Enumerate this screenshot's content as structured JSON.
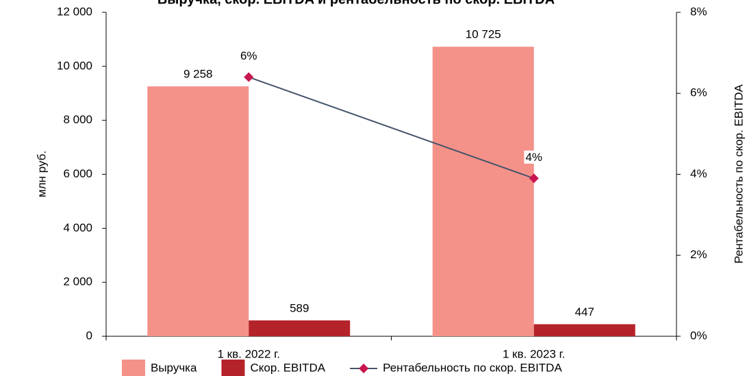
{
  "chart_data": {
    "type": "bar_line",
    "title": "Выручка, скор. EBITDA и рентабельность по скор. EBITDA",
    "categories": [
      "1 кв. 2022 г.",
      "1 кв. 2023 г."
    ],
    "y_label": "млн руб.",
    "y2_label": "Рентабельность по скор. EBITDA",
    "series": [
      {
        "name": "Выручка",
        "color": "#f4928a",
        "values": [
          9258,
          10725
        ],
        "value_labels": [
          "9 258",
          "10 725"
        ]
      },
      {
        "name": "Скор. EBITDA",
        "color": "#b5232a",
        "values": [
          589,
          447
        ],
        "value_labels": [
          "589",
          "447"
        ]
      },
      {
        "name": "Рентабельность по скор. EBITDA",
        "color": "#44546a",
        "marker_color": "#c8174f",
        "axis": "y2",
        "values": [
          6.4,
          3.9
        ],
        "value_labels": [
          "6%",
          "4%"
        ]
      }
    ],
    "ylim": [
      0,
      12000
    ],
    "yticks": [
      {
        "value": 0,
        "label": "0"
      },
      {
        "value": 2000,
        "label": "2 000"
      },
      {
        "value": 4000,
        "label": "4 000"
      },
      {
        "value": 6000,
        "label": "6 000"
      },
      {
        "value": 8000,
        "label": "8 000"
      },
      {
        "value": 10000,
        "label": "10 000"
      },
      {
        "value": 12000,
        "label": "12 000"
      }
    ],
    "y2lim": [
      0,
      8
    ],
    "y2ticks": [
      {
        "value": 0,
        "label": "0%"
      },
      {
        "value": 2,
        "label": "2%"
      },
      {
        "value": 4,
        "label": "4%"
      },
      {
        "value": 6,
        "label": "6%"
      },
      {
        "value": 8,
        "label": "8%"
      }
    ]
  }
}
